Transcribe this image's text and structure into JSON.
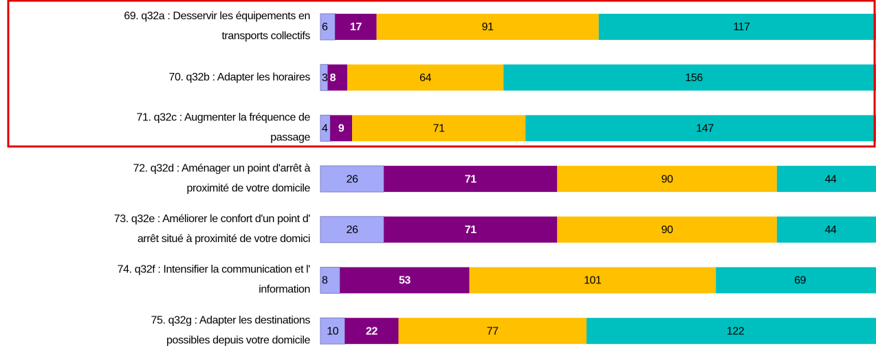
{
  "chart_data": {
    "type": "stacked-bar-horizontal",
    "categories": [
      [
        "69. q32a : Desservir les équipements en",
        "transports collectifs"
      ],
      [
        "70. q32b : Adapter les horaires"
      ],
      [
        "71. q32c : Augmenter la fréquence de",
        "passage"
      ],
      [
        "72. q32d : Aménager un point d'arrêt à",
        "proximité de votre domicile"
      ],
      [
        "73. q32e : Améliorer le confort d'un point d'",
        "arrêt situé à proximité de votre domici"
      ],
      [
        "74. q32f : Intensifier la communication et l'",
        "information"
      ],
      [
        "75. q32g : Adapter les destinations",
        "possibles depuis votre domicile"
      ]
    ],
    "series": [
      {
        "color": "#a4a9f8",
        "values": [
          6,
          3,
          4,
          26,
          26,
          8,
          10
        ]
      },
      {
        "color": "#800080",
        "values": [
          17,
          8,
          9,
          71,
          71,
          53,
          22
        ]
      },
      {
        "color": "#ffc000",
        "values": [
          91,
          64,
          71,
          90,
          90,
          101,
          77
        ]
      },
      {
        "color": "#00bfbf",
        "values": [
          117,
          156,
          147,
          44,
          44,
          69,
          122
        ]
      }
    ]
  }
}
